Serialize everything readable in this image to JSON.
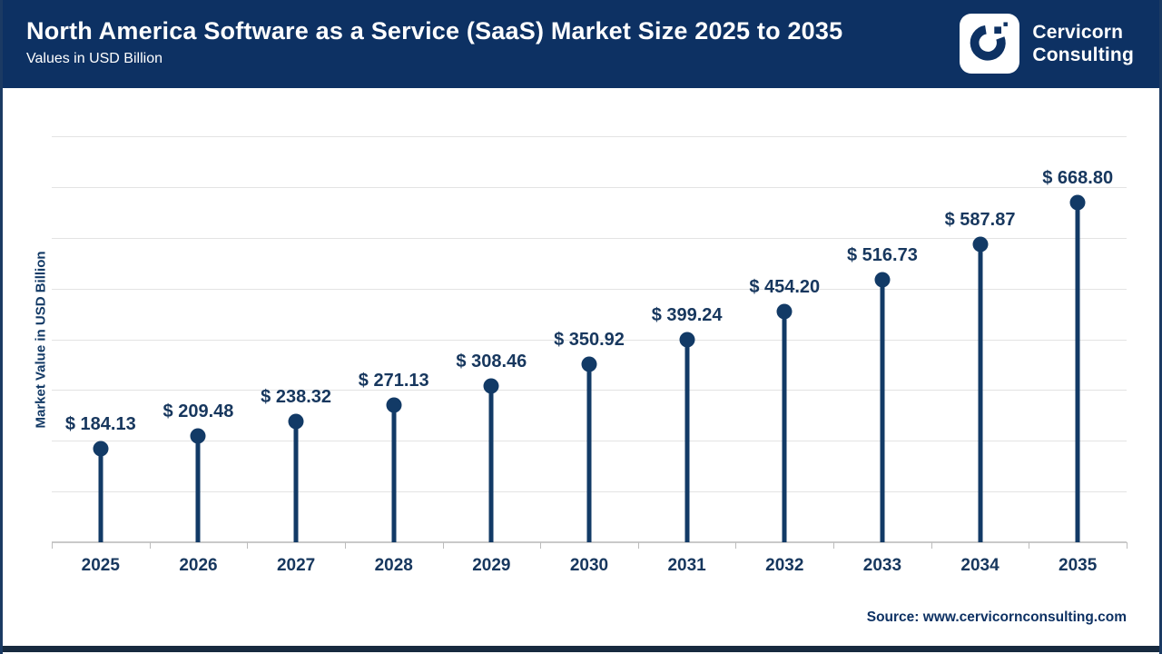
{
  "header": {
    "title": "North America Software as a Service (SaaS) Market Size 2025 to 2035",
    "subtitle": "Values in USD Billion",
    "logo": {
      "name_line1": "Cervicorn",
      "name_line2": "Consulting"
    }
  },
  "chart_data": {
    "type": "lollipop",
    "title": "North America Software as a Service (SaaS) Market Size 2025 to 2035",
    "categories": [
      "2025",
      "2026",
      "2027",
      "2028",
      "2029",
      "2030",
      "2031",
      "2032",
      "2033",
      "2034",
      "2035"
    ],
    "values": [
      184.13,
      209.48,
      238.32,
      271.13,
      308.46,
      350.92,
      399.24,
      454.2,
      516.73,
      587.87,
      668.8
    ],
    "value_prefix": "$ ",
    "value_decimals": 2,
    "xlabel": "",
    "ylabel": "Market Value in USD Billion",
    "ylim": [
      0,
      800
    ],
    "grid_step": 100,
    "grid": true,
    "legend": false,
    "y_tick_labels_shown": false
  },
  "footer": {
    "source": "Source: www.cervicornconsulting.com"
  },
  "colors": {
    "header_bg": "#0d3163",
    "accent": "#123a66",
    "label_text": "#17375e",
    "grid": "#e3e3e3",
    "axis": "#c9c9c9",
    "bottom_bar": "#172a3f",
    "logo_bg": "#ffffff"
  }
}
